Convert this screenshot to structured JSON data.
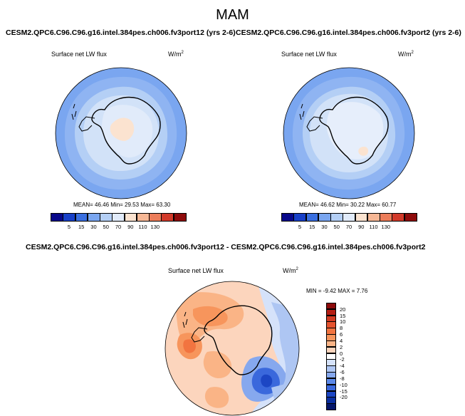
{
  "figure": {
    "season": "MAM",
    "left_case": "CESM2.QPC6.C96.C96.g16.intel.384pes.ch006.fv3port12 (yrs 2-6)",
    "right_case": "CESM2.QPC6.C96.C96.g16.intel.384pes.ch006.fv3port2 (yrs 2-6)",
    "diff_case": "CESM2.QPC6.C96.C96.g16.intel.384pes.ch006.fv3port12 - CESM2.QPC6.C96.C96.g16.intel.384pes.ch006.fv3port2"
  },
  "panels": {
    "left": {
      "variable": "Surface net LW flux",
      "units": "W/m",
      "units_sup": "2",
      "stats": "MEAN=  46.46  Min=  29.53  Max=  63.30"
    },
    "right": {
      "variable": "Surface net LW flux",
      "units": "W/m",
      "units_sup": "2",
      "stats": "MEAN=  46.62  Min=  30.22  Max=  60.77"
    },
    "diff": {
      "variable": "Surface net LW flux",
      "units": "W/m",
      "units_sup": "2",
      "stats": "MIN =  -9.42  MAX =   7.76"
    }
  },
  "chart_data": [
    {
      "type": "map",
      "projection": "south-polar stereographic",
      "panel": "left",
      "colorbar_levels": [
        5,
        15,
        30,
        50,
        70,
        90,
        110,
        130
      ],
      "colorbar_colors": [
        "#08088a",
        "#1840c8",
        "#3a6fe0",
        "#7aa6f0",
        "#b4cff5",
        "#e1ebfa",
        "#fbe3d0",
        "#f6b795",
        "#ec7d5a",
        "#d23a2a",
        "#8e0b0b"
      ],
      "mean": 46.46,
      "min": 29.53,
      "max": 63.3
    },
    {
      "type": "map",
      "projection": "south-polar stereographic",
      "panel": "right",
      "colorbar_levels": [
        5,
        15,
        30,
        50,
        70,
        90,
        110,
        130
      ],
      "colorbar_colors": [
        "#08088a",
        "#1840c8",
        "#3a6fe0",
        "#7aa6f0",
        "#b4cff5",
        "#e1ebfa",
        "#fbe3d0",
        "#f6b795",
        "#ec7d5a",
        "#d23a2a",
        "#8e0b0b"
      ],
      "mean": 46.62,
      "min": 30.22,
      "max": 60.77
    },
    {
      "type": "map",
      "projection": "south-polar stereographic",
      "panel": "difference",
      "colorbar_levels": [
        20,
        15,
        10,
        8,
        6,
        4,
        2,
        0,
        -2,
        -4,
        -6,
        -8,
        -10,
        -15,
        -20
      ],
      "colorbar_colors": [
        "#8c0a0a",
        "#b41e14",
        "#d23c24",
        "#e5532e",
        "#f27440",
        "#f7955c",
        "#fab486",
        "#fcd5bd",
        "#ffffff",
        "#d5e2fa",
        "#aec6f3",
        "#86a8ee",
        "#5b88e8",
        "#3a68dc",
        "#1c46c4",
        "#0a2ea0",
        "#04166a"
      ],
      "min": -9.42,
      "max": 7.76
    }
  ]
}
